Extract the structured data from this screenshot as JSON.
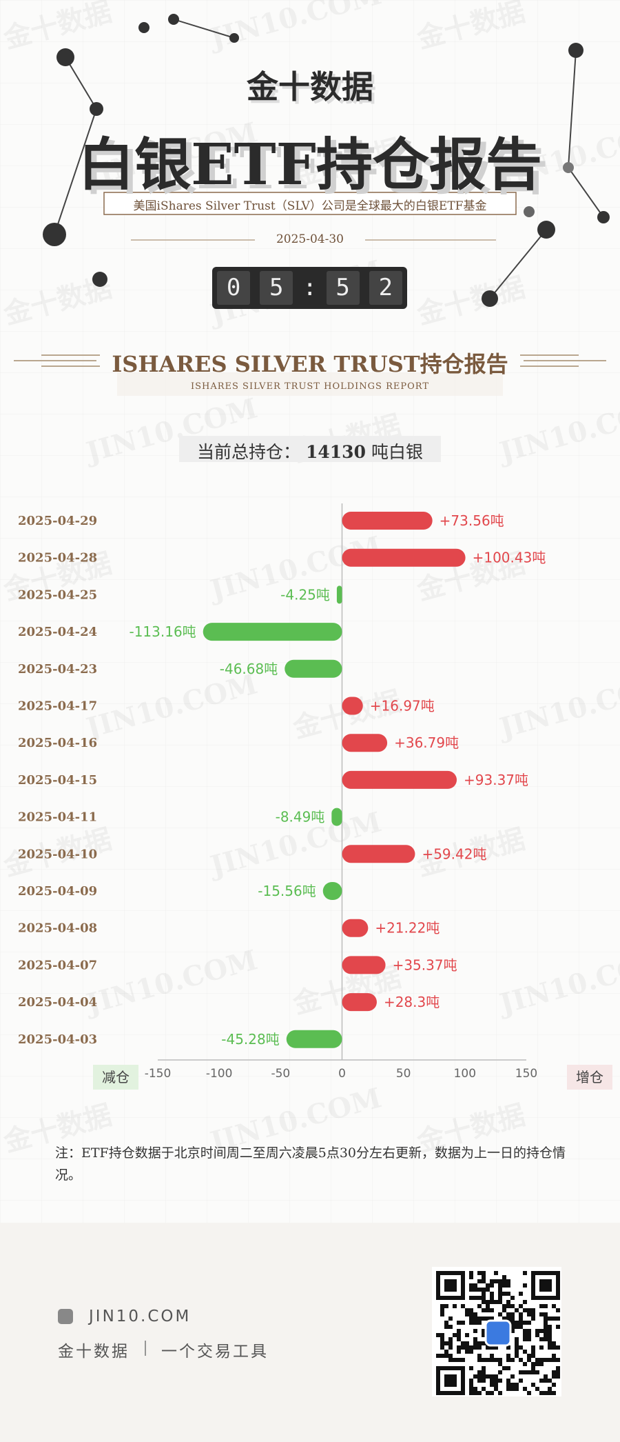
{
  "header": {
    "brand": "金十数据",
    "title": "白银ETF持仓报告",
    "subtitle": "美国iShares Silver Trust（SLV）公司是全球最大的白银ETF基金",
    "date": "2025-04-30",
    "timer": [
      "0",
      "5",
      ":",
      "5",
      "2"
    ]
  },
  "section": {
    "title": "ISHARES SILVER TRUST持仓报告",
    "subtitle": "ISHARES SILVER TRUST HOLDINGS REPORT",
    "total_label": "当前总持仓：",
    "total_value": "14130",
    "total_unit": "吨白银"
  },
  "chart_data": {
    "type": "bar",
    "orientation": "horizontal",
    "categories": [
      "2025-04-29",
      "2025-04-28",
      "2025-04-25",
      "2025-04-24",
      "2025-04-23",
      "2025-04-17",
      "2025-04-16",
      "2025-04-15",
      "2025-04-11",
      "2025-04-10",
      "2025-04-09",
      "2025-04-08",
      "2025-04-07",
      "2025-04-04",
      "2025-04-03"
    ],
    "values": [
      73.56,
      100.43,
      -4.25,
      -113.16,
      -46.68,
      16.97,
      36.79,
      93.37,
      -8.49,
      59.42,
      -15.56,
      21.22,
      35.37,
      28.3,
      -45.28
    ],
    "value_labels": [
      "+73.56吨",
      "+100.43吨",
      "-4.25吨",
      "-113.16吨",
      "-46.68吨",
      "+16.97吨",
      "+36.79吨",
      "+93.37吨",
      "-8.49吨",
      "+59.42吨",
      "-15.56吨",
      "+21.22吨",
      "+35.37吨",
      "+28.3吨",
      "-45.28吨"
    ],
    "positive_color": "#e2474c",
    "negative_color": "#5bbd52",
    "xlim": [
      -150,
      150
    ],
    "xticks": [
      -150,
      -100,
      -50,
      0,
      50,
      100,
      150
    ],
    "negative_label": "减仓",
    "positive_label": "增仓"
  },
  "note": "注：ETF持仓数据于北京时间周二至周六凌晨5点30分左右更新，数据为上一日的持仓情况。",
  "footer": {
    "site": "JIN10.COM",
    "tagline": [
      "金十数据",
      "一个交易工具"
    ]
  },
  "watermark": [
    "金十数据",
    "JIN10.COM"
  ]
}
